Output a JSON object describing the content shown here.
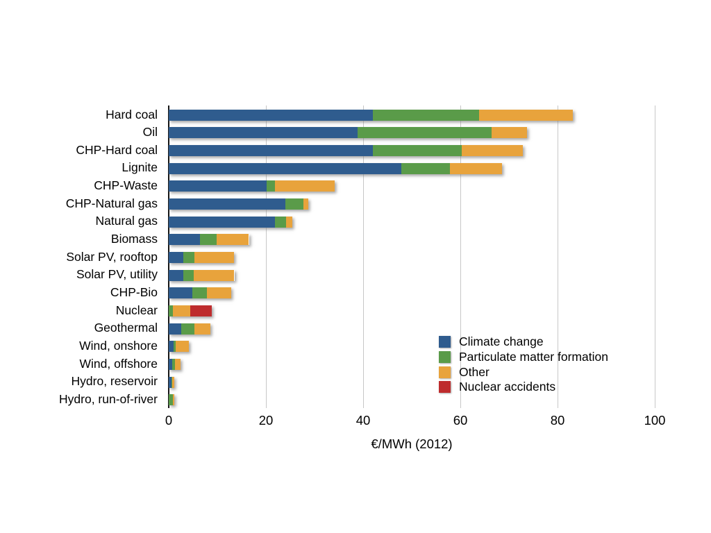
{
  "background_color": "#ffffff",
  "chart_data": {
    "type": "bar",
    "orientation": "horizontal",
    "stacked": true,
    "title": "",
    "xlabel": "€/MWh (2012)",
    "ylabel": "",
    "xlim": [
      0,
      100
    ],
    "xticks": [
      0,
      20,
      40,
      60,
      80,
      100
    ],
    "grid": "vertical-gridlines-on",
    "legend_position": "inside-lower-right",
    "categories": [
      "Hard coal",
      "Oil",
      "CHP-Hard coal",
      "Lignite",
      "CHP-Waste",
      "CHP-Natural gas",
      "Natural gas",
      "Biomass",
      "Solar PV, rooftop",
      "Solar PV, utility",
      "CHP-Bio",
      "Nuclear",
      "Geothermal",
      "Wind, onshore",
      "Wind, offshore",
      "Hydro, reservoir",
      "Hydro, run-of-river"
    ],
    "series": [
      {
        "name": "Climate change",
        "color": "#2F5C8E",
        "values": [
          42.0,
          38.9,
          42.0,
          47.9,
          20.2,
          24.0,
          21.8,
          6.4,
          3.0,
          3.0,
          4.9,
          0,
          2.5,
          1.0,
          0.7,
          0.6,
          0
        ]
      },
      {
        "name": "Particulate matter formation",
        "color": "#5A9B49",
        "values": [
          21.9,
          27.5,
          18.3,
          10.0,
          1.7,
          3.7,
          2.4,
          3.4,
          2.3,
          2.2,
          3.0,
          0.8,
          2.8,
          0.4,
          0.6,
          0.1,
          0.8
        ]
      },
      {
        "name": "Other",
        "color": "#E8A33C",
        "values": [
          19.3,
          7.3,
          12.5,
          10.7,
          12.3,
          1.0,
          1.2,
          6.7,
          8.1,
          8.3,
          4.9,
          3.7,
          3.3,
          2.8,
          1.1,
          0.5,
          0.3
        ]
      },
      {
        "name": "Nuclear accidents",
        "color": "#BE2C2D",
        "values": [
          0,
          0,
          0,
          0,
          0,
          0,
          0,
          0,
          0,
          0,
          0,
          4.3,
          0,
          0,
          0,
          0,
          0
        ]
      }
    ],
    "axis_color": "#151515",
    "gridline_color": "#c7c7c7",
    "text_color": "#000000"
  }
}
